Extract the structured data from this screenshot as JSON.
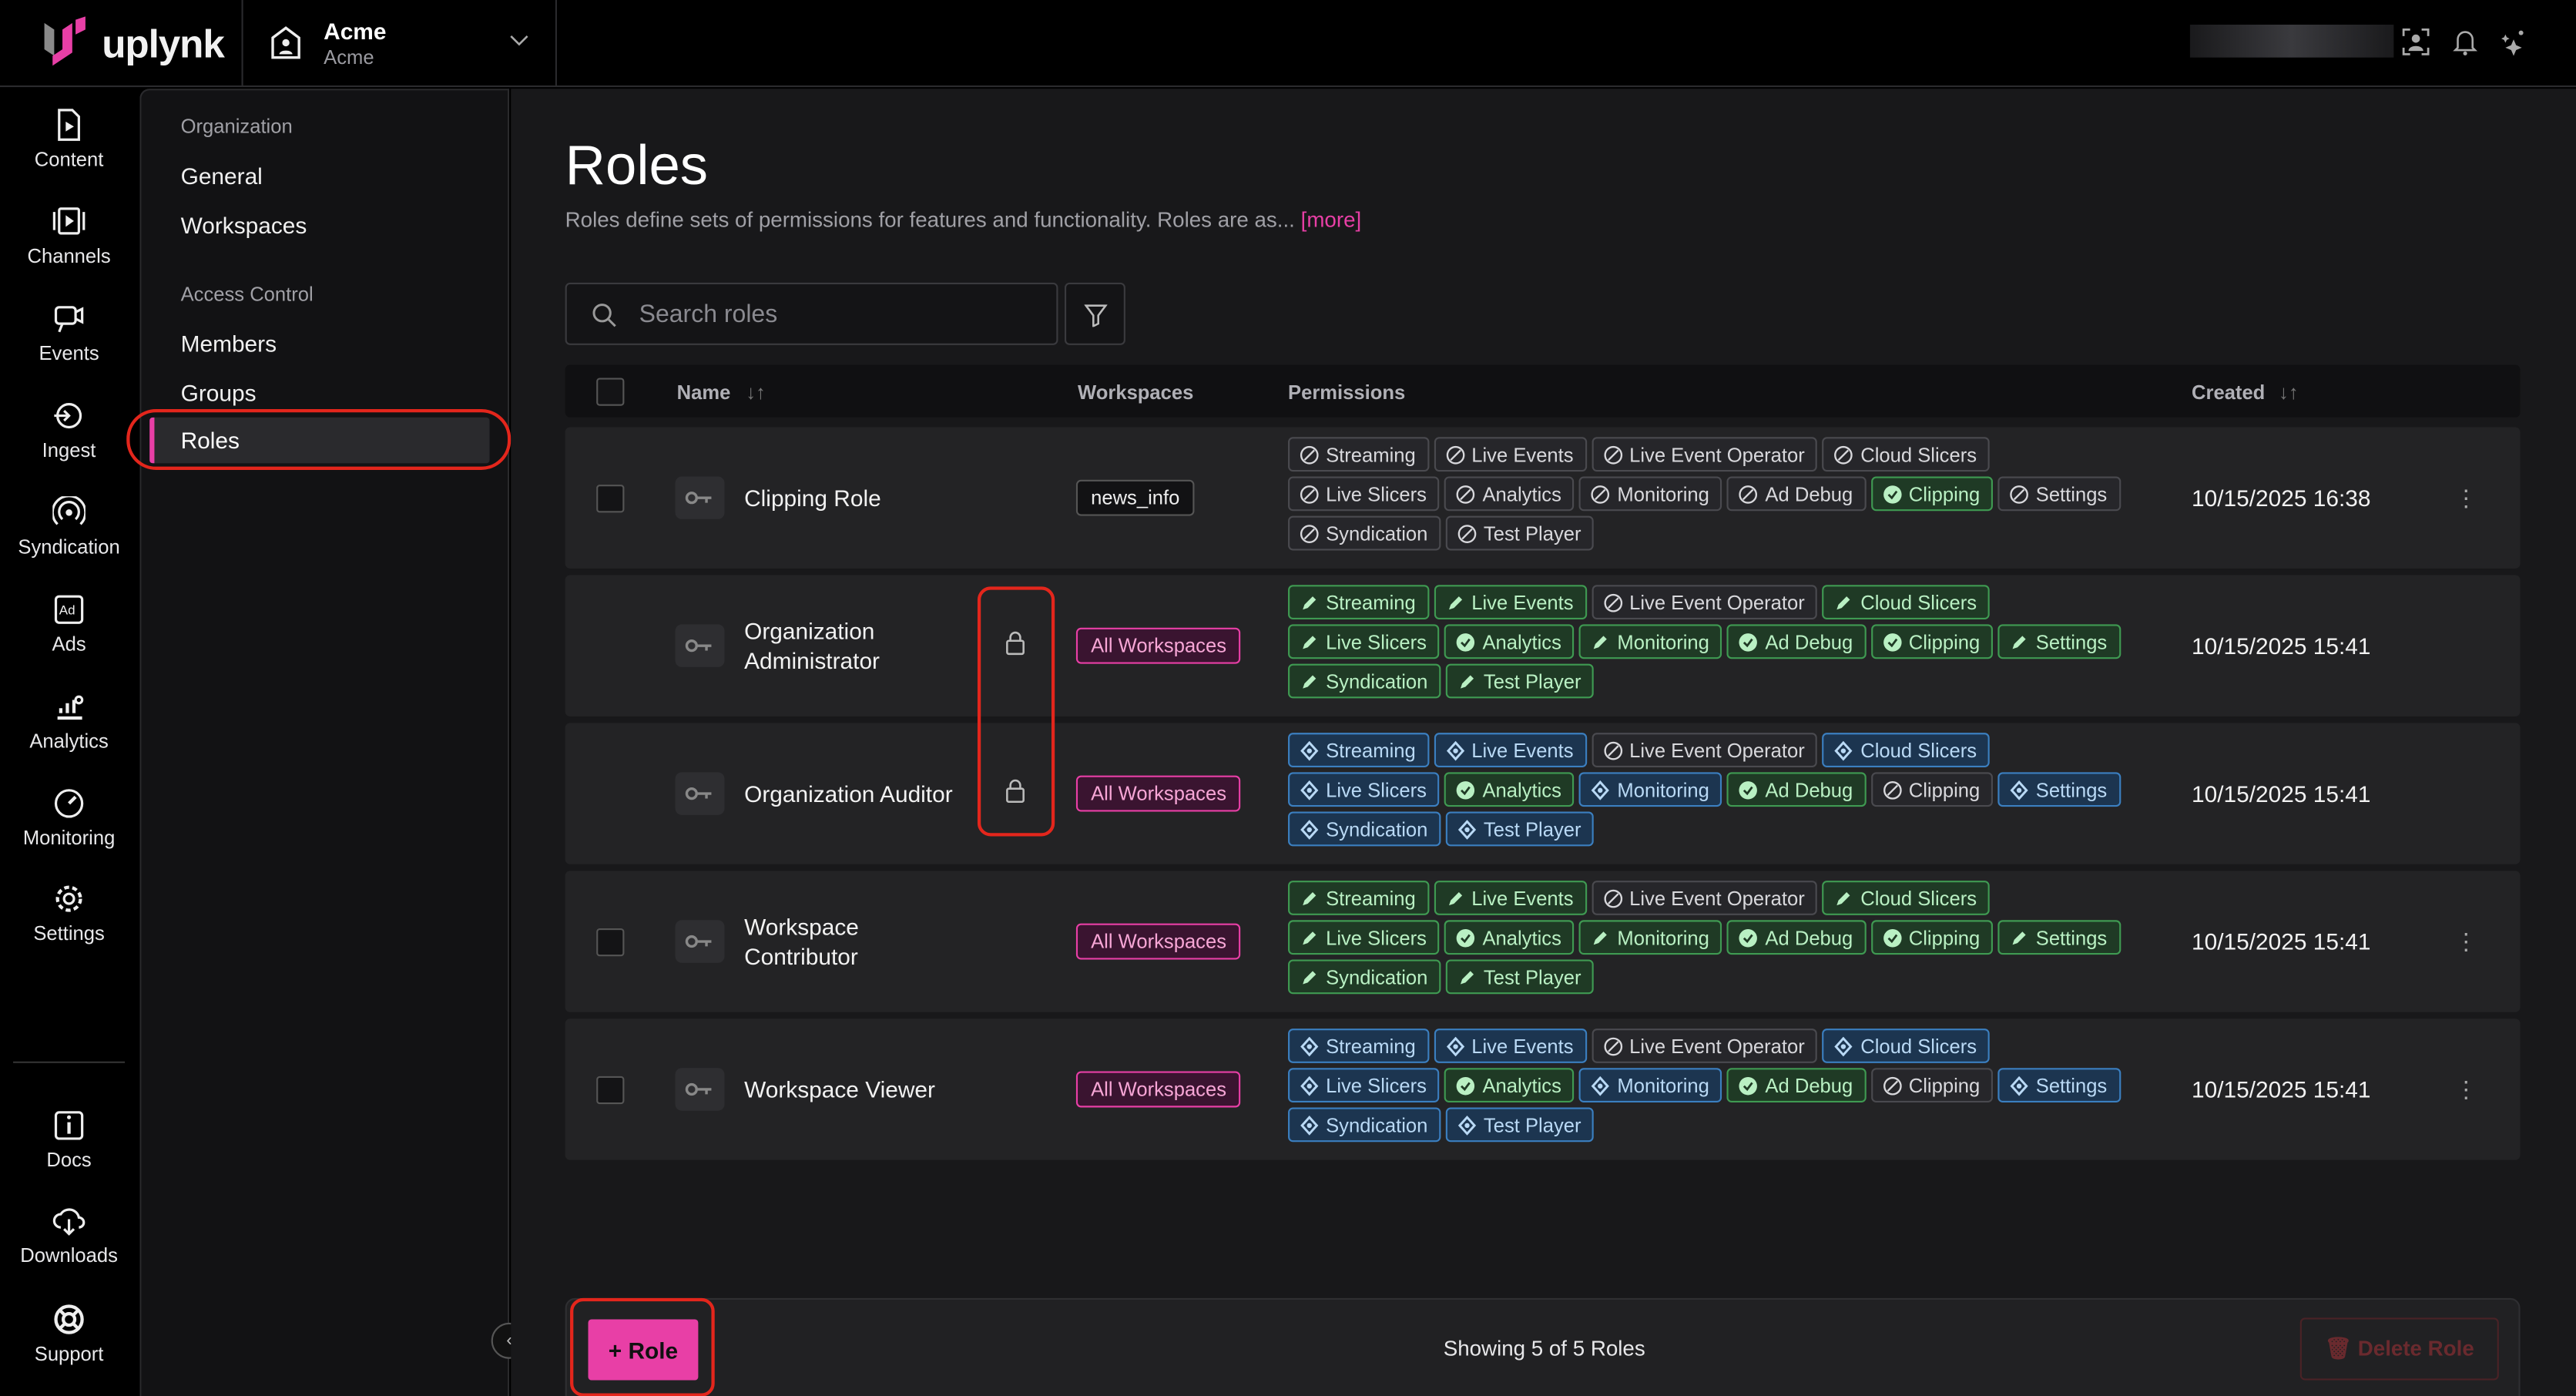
{
  "brand": {
    "logo_text": "uplynk"
  },
  "org_switcher": {
    "name": "Acme",
    "sub": "Acme"
  },
  "rail": [
    {
      "label": "Content",
      "icon": "content-icon"
    },
    {
      "label": "Channels",
      "icon": "channels-icon"
    },
    {
      "label": "Events",
      "icon": "events-icon"
    },
    {
      "label": "Ingest",
      "icon": "ingest-icon"
    },
    {
      "label": "Syndication",
      "icon": "syndication-icon"
    },
    {
      "label": "Ads",
      "icon": "ads-icon"
    },
    {
      "label": "Analytics",
      "icon": "analytics-icon"
    },
    {
      "label": "Monitoring",
      "icon": "monitoring-icon"
    },
    {
      "label": "Settings",
      "icon": "settings-icon"
    },
    {
      "label": "Docs",
      "icon": "docs-icon"
    },
    {
      "label": "Downloads",
      "icon": "downloads-icon"
    },
    {
      "label": "Support",
      "icon": "support-icon"
    }
  ],
  "subnav": {
    "section1": "Organization",
    "general": "General",
    "workspaces": "Workspaces",
    "section2": "Access Control",
    "members": "Members",
    "groups": "Groups",
    "roles": "Roles"
  },
  "page": {
    "title": "Roles",
    "description": "Roles define sets of permissions for features and functionality. Roles are as...",
    "more": "[more]"
  },
  "search": {
    "placeholder": "Search roles",
    "value": ""
  },
  "table": {
    "headers": {
      "name": "Name",
      "workspaces": "Workspaces",
      "permissions": "Permissions",
      "created": "Created"
    },
    "permission_names": [
      "Streaming",
      "Live Events",
      "Live Event Operator",
      "Cloud Slicers",
      "Live Slicers",
      "Analytics",
      "Monitoring",
      "Ad Debug",
      "Clipping",
      "Settings",
      "Syndication",
      "Test Player"
    ],
    "rows": [
      {
        "name": "Clipping Role",
        "workspace": "news_info",
        "workspace_style": "plain",
        "locked": false,
        "checkbox": true,
        "perms": [
          "n",
          "n",
          "n",
          "n",
          "n",
          "n",
          "n",
          "n",
          "c",
          "n",
          "n",
          "n"
        ],
        "created": "10/15/2025 16:38"
      },
      {
        "name": "Organization Administrator",
        "workspace": "All Workspaces",
        "workspace_style": "all",
        "locked": true,
        "checkbox": false,
        "perms": [
          "e",
          "e",
          "n",
          "e",
          "e",
          "c",
          "e",
          "c",
          "c",
          "e",
          "e",
          "e"
        ],
        "created": "10/15/2025 15:41"
      },
      {
        "name": "Organization Auditor",
        "workspace": "All Workspaces",
        "workspace_style": "all",
        "locked": true,
        "checkbox": false,
        "perms": [
          "v",
          "v",
          "n",
          "v",
          "v",
          "c",
          "v",
          "c",
          "n",
          "v",
          "v",
          "v"
        ],
        "created": "10/15/2025 15:41"
      },
      {
        "name": "Workspace Contributor",
        "workspace": "All Workspaces",
        "workspace_style": "all",
        "locked": false,
        "checkbox": true,
        "perms": [
          "e",
          "e",
          "n",
          "e",
          "e",
          "c",
          "e",
          "c",
          "c",
          "e",
          "e",
          "e"
        ],
        "created": "10/15/2025 15:41"
      },
      {
        "name": "Workspace Viewer",
        "workspace": "All Workspaces",
        "workspace_style": "all",
        "locked": false,
        "checkbox": true,
        "perms": [
          "v",
          "v",
          "n",
          "v",
          "v",
          "c",
          "v",
          "c",
          "n",
          "v",
          "v",
          "v"
        ],
        "created": "10/15/2025 15:41"
      }
    ]
  },
  "footer": {
    "add_label": "+ Role",
    "showing": "Showing 5 of 5 Roles",
    "delete_label": "Delete Role"
  },
  "colors": {
    "accent": "#e83fa6",
    "edit": "#3f9a52",
    "view": "#3b7fc0",
    "annotation": "#e3261c"
  }
}
